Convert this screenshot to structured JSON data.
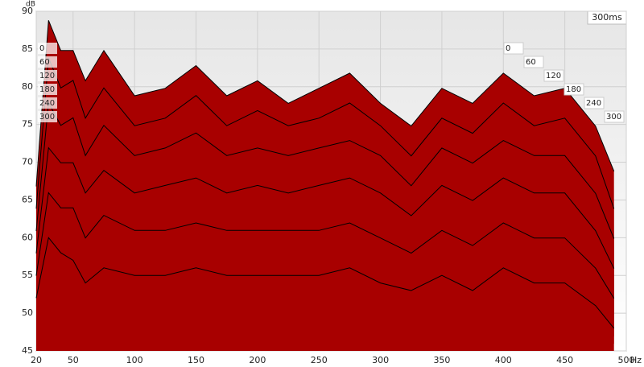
{
  "chart_data": {
    "type": "waterfall",
    "y_label": "dB",
    "x_label": "Hz",
    "time_label": "300ms",
    "color": "#a80000",
    "x": [
      20,
      30,
      40,
      50,
      60,
      75,
      100,
      125,
      150,
      175,
      200,
      225,
      250,
      275,
      300,
      325,
      350,
      375,
      400,
      425,
      450,
      475,
      490
    ],
    "series": [
      {
        "values": [
          62,
          84,
          80,
          80,
          76,
          80,
          74,
          75,
          78,
          74,
          76,
          73,
          75,
          77,
          73,
          70,
          75,
          73,
          77,
          74,
          75,
          70,
          64
        ]
      },
      {
        "values": [
          60,
          80,
          76,
          77,
          72,
          76,
          71,
          72,
          75,
          71,
          73,
          71,
          72,
          74,
          71,
          67,
          72,
          70,
          74,
          71,
          72,
          67,
          60
        ]
      },
      {
        "values": [
          58,
          75,
          72,
          73,
          68,
          72,
          68,
          69,
          71,
          68,
          69,
          68,
          69,
          70,
          68,
          64,
          69,
          67,
          70,
          68,
          68,
          63,
          57
        ]
      },
      {
        "values": [
          56,
          70,
          68,
          68,
          64,
          67,
          64,
          65,
          66,
          64,
          65,
          64,
          65,
          66,
          64,
          61,
          65,
          63,
          66,
          64,
          64,
          59,
          54
        ]
      },
      {
        "values": [
          54,
          65,
          63,
          63,
          59,
          62,
          60,
          60,
          61,
          60,
          60,
          60,
          60,
          61,
          59,
          57,
          60,
          58,
          61,
          59,
          59,
          55,
          51
        ]
      },
      {
        "values": [
          52,
          60,
          58,
          57,
          54,
          56,
          55,
          55,
          56,
          55,
          55,
          55,
          55,
          56,
          54,
          53,
          55,
          53,
          56,
          54,
          54,
          51,
          48
        ]
      }
    ],
    "depth_ticks": [
      0,
      60,
      120,
      180,
      240,
      300
    ],
    "xlim": [
      20,
      500
    ],
    "xticks": [
      20,
      50,
      100,
      150,
      200,
      250,
      300,
      350,
      400,
      450,
      500
    ],
    "ylim": [
      45,
      90
    ],
    "yticks": [
      45,
      50,
      55,
      60,
      65,
      70,
      75,
      80,
      85,
      90
    ],
    "grid": true
  }
}
